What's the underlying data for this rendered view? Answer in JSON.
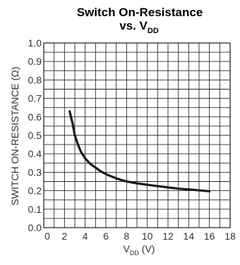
{
  "chart_data": {
    "type": "line",
    "title": {
      "line1": "Switch On-Resistance",
      "line2_main": "vs. V",
      "line2_sub": "DD"
    },
    "xlabel": {
      "main": "V",
      "sub": "DD",
      "unit": " (V)"
    },
    "ylabel": "SWITCH ON-RESISTANCE (Ω)",
    "xlim": [
      0,
      18
    ],
    "ylim": [
      0,
      1.0
    ],
    "x_ticks": [
      0,
      2,
      4,
      6,
      8,
      10,
      12,
      14,
      16,
      18
    ],
    "y_ticks": [
      0.0,
      0.1,
      0.2,
      0.3,
      0.4,
      0.5,
      0.6,
      0.7,
      0.8,
      0.9,
      1.0
    ],
    "x_tick_labels": [
      "0",
      "2",
      "4",
      "6",
      "8",
      "10",
      "12",
      "14",
      "16",
      "18"
    ],
    "y_tick_labels": [
      "0.0",
      "0.1",
      "0.2",
      "0.3",
      "0.4",
      "0.5",
      "0.6",
      "0.7",
      "0.8",
      "0.9",
      "1.0"
    ],
    "grid": true,
    "x_minor_divisions": 2,
    "y_minor_divisions": 2,
    "series": [
      {
        "color": "#1a1a1a",
        "x": [
          2.5,
          2.8,
          3.0,
          3.3,
          3.6,
          4.0,
          4.5,
          5.0,
          5.5,
          6.0,
          6.5,
          7.0,
          7.5,
          8.0,
          9.0,
          10.0,
          11.0,
          12.0,
          13.0,
          14.0,
          15.0,
          16.0
        ],
        "y": [
          0.63,
          0.56,
          0.5,
          0.45,
          0.41,
          0.375,
          0.345,
          0.325,
          0.305,
          0.29,
          0.278,
          0.267,
          0.258,
          0.25,
          0.24,
          0.232,
          0.225,
          0.218,
          0.211,
          0.207,
          0.202,
          0.197
        ]
      }
    ]
  }
}
